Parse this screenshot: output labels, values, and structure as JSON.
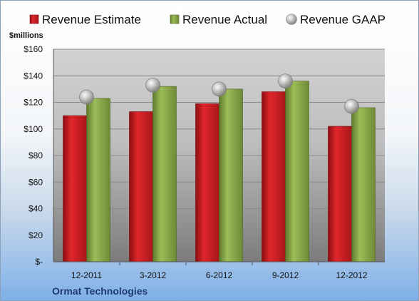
{
  "chart_data": {
    "type": "bar",
    "title": "",
    "unit_label": "$millions",
    "footer_label": "Ormat Technologies",
    "categories": [
      "12-2011",
      "3-2012",
      "6-2012",
      "9-2012",
      "12-2012"
    ],
    "series": [
      {
        "name": "Revenue Estimate",
        "kind": "bar",
        "color": "#c8191e",
        "values": [
          110,
          113,
          119,
          128,
          102
        ]
      },
      {
        "name": "Revenue Actual",
        "kind": "bar",
        "color": "#8caa4a",
        "values": [
          123,
          132,
          130,
          136,
          116
        ]
      },
      {
        "name": "Revenue GAAP",
        "kind": "marker",
        "color": "#b9b9b9",
        "values": [
          124,
          133,
          130,
          136,
          117
        ]
      }
    ],
    "ylim": [
      0,
      160
    ],
    "y_ticks": [
      {
        "value": 0,
        "label": "$-"
      },
      {
        "value": 20,
        "label": "$20"
      },
      {
        "value": 40,
        "label": "$40"
      },
      {
        "value": 60,
        "label": "$60"
      },
      {
        "value": 80,
        "label": "$80"
      },
      {
        "value": 100,
        "label": "$100"
      },
      {
        "value": 120,
        "label": "$120"
      },
      {
        "value": 140,
        "label": "$140"
      },
      {
        "value": 160,
        "label": "$160"
      }
    ],
    "grid": true,
    "legend_position": "top"
  }
}
